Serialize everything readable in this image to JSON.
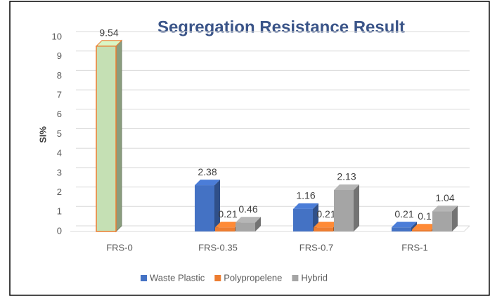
{
  "chart_data": {
    "type": "bar3d",
    "title": "Segregation Resistance Result",
    "ylabel": "SI%",
    "categories": [
      "FRS-0",
      "FRS-0.35",
      "FRS-0.7",
      "FRS-1"
    ],
    "series": [
      {
        "name": "Waste Plastic",
        "color": "#4472c4",
        "point_colors": [
          "#c5e0b4",
          "#4472c4",
          "#4472c4",
          "#4472c4"
        ],
        "values": [
          9.54,
          2.38,
          1.16,
          0.21
        ]
      },
      {
        "name": "Polypropelene",
        "color": "#ed7d31",
        "values": [
          null,
          0.21,
          0.21,
          0.1
        ]
      },
      {
        "name": "Hybrid",
        "color": "#a5a5a5",
        "values": [
          null,
          0.46,
          2.13,
          1.04
        ]
      }
    ],
    "ylim": [
      0,
      10
    ],
    "yticks": [
      0,
      1,
      2,
      3,
      4,
      5,
      6,
      7,
      8,
      9,
      10
    ],
    "grid": true,
    "legend": "bottom"
  }
}
